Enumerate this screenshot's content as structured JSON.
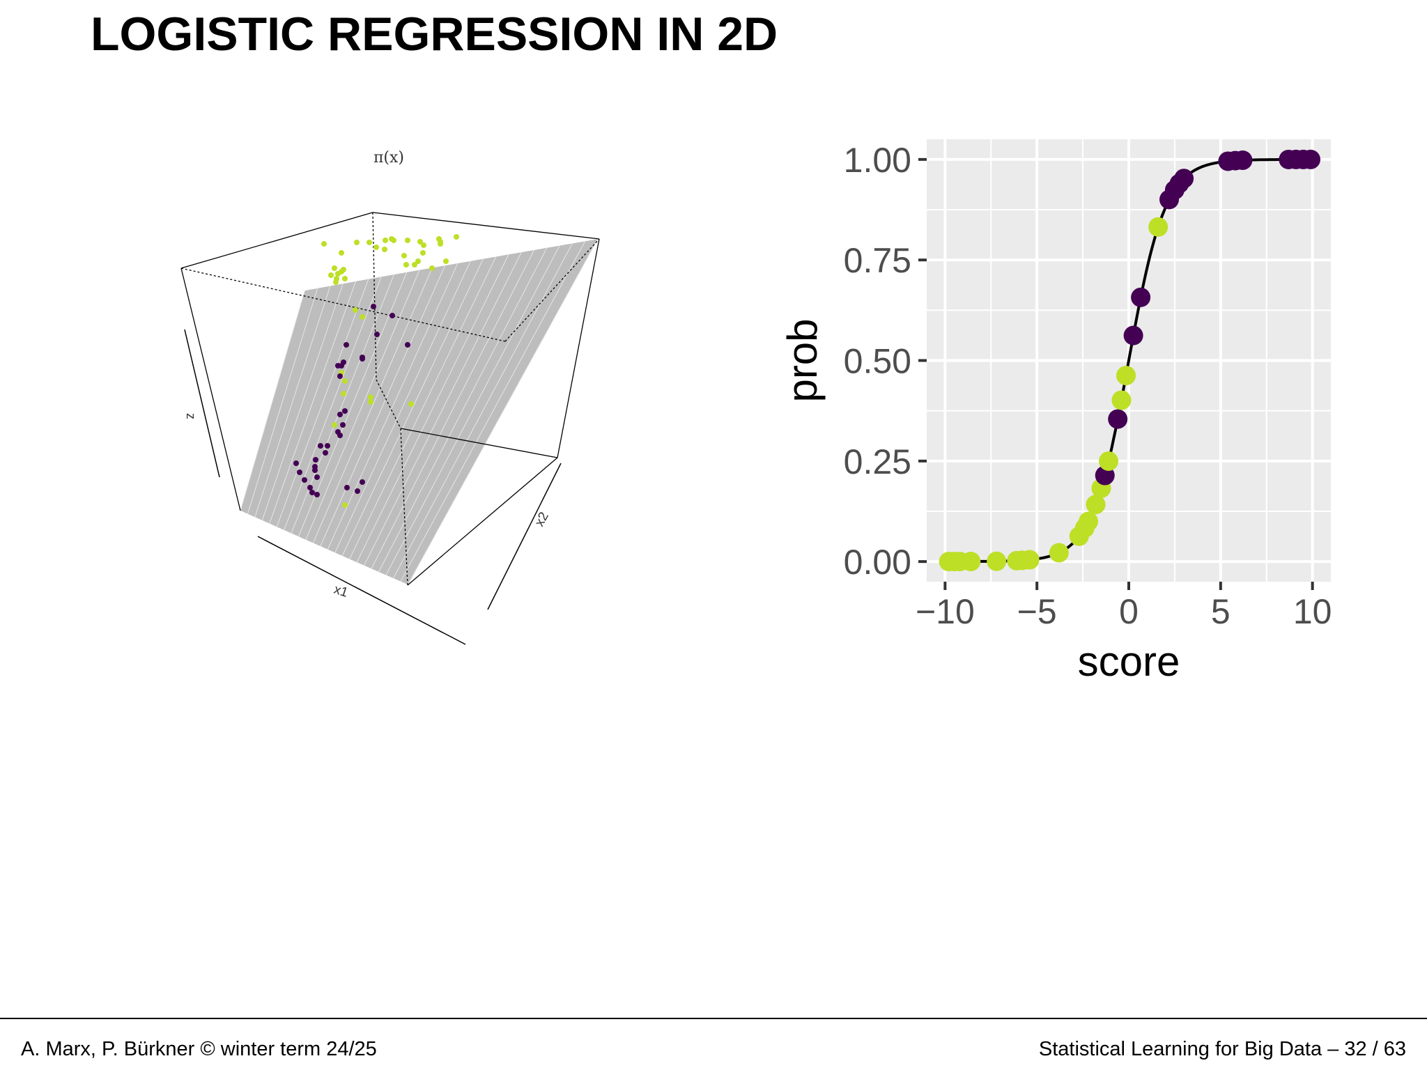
{
  "slide": {
    "title": "LOGISTIC REGRESSION IN 2D"
  },
  "surface_plot": {
    "title": "π(x)",
    "axis_x1": "x1",
    "axis_x2": "x2",
    "axis_z": "z",
    "surface_color": "#bdbdbd",
    "class_colors": {
      "class0": "#440154",
      "class1": "#bddf26"
    }
  },
  "chart_data": {
    "type": "scatter",
    "xlabel": "score",
    "ylabel": "prob",
    "xlim": [
      -11,
      11
    ],
    "ylim": [
      -0.05,
      1.05
    ],
    "x_ticks": [
      -10,
      -5,
      0,
      5,
      10
    ],
    "x_tick_labels": [
      "−10",
      "−5",
      "0",
      "5",
      "10"
    ],
    "y_ticks": [
      0,
      0.25,
      0.5,
      0.75,
      1
    ],
    "y_tick_labels": [
      "0.00",
      "0.25",
      "0.50",
      "0.75",
      "1.00"
    ],
    "grid": true,
    "curve": "logistic",
    "panel_color": "#ebebeb",
    "line_color": "#000000",
    "class_colors": {
      "class0": "#440154",
      "class1": "#bddf26"
    },
    "points": [
      {
        "x": -9.8,
        "class": 1
      },
      {
        "x": -9.5,
        "class": 1
      },
      {
        "x": -9.2,
        "class": 1
      },
      {
        "x": -8.6,
        "class": 1
      },
      {
        "x": -7.2,
        "class": 1
      },
      {
        "x": -6.1,
        "class": 1
      },
      {
        "x": -5.8,
        "class": 1
      },
      {
        "x": -5.4,
        "class": 1
      },
      {
        "x": -3.8,
        "class": 1
      },
      {
        "x": -2.7,
        "class": 1
      },
      {
        "x": -2.4,
        "class": 1
      },
      {
        "x": -2.2,
        "class": 1
      },
      {
        "x": -1.8,
        "class": 1
      },
      {
        "x": -1.5,
        "class": 1
      },
      {
        "x": -1.3,
        "class": 0
      },
      {
        "x": -1.1,
        "class": 1
      },
      {
        "x": -0.6,
        "class": 0
      },
      {
        "x": -0.4,
        "class": 1
      },
      {
        "x": -0.15,
        "class": 1
      },
      {
        "x": 0.25,
        "class": 0
      },
      {
        "x": 0.65,
        "class": 0
      },
      {
        "x": 1.6,
        "class": 1
      },
      {
        "x": 2.2,
        "class": 0
      },
      {
        "x": 2.5,
        "class": 0
      },
      {
        "x": 2.75,
        "class": 0
      },
      {
        "x": 3.0,
        "class": 0
      },
      {
        "x": 5.4,
        "class": 0
      },
      {
        "x": 5.8,
        "class": 0
      },
      {
        "x": 6.2,
        "class": 0
      },
      {
        "x": 8.7,
        "class": 0
      },
      {
        "x": 9.1,
        "class": 0
      },
      {
        "x": 9.5,
        "class": 0
      },
      {
        "x": 9.9,
        "class": 0
      }
    ]
  },
  "footer": {
    "left": "A. Marx, P. Bürkner © winter term 24/25",
    "right": "Statistical Learning for Big Data  –  32 / 63"
  }
}
